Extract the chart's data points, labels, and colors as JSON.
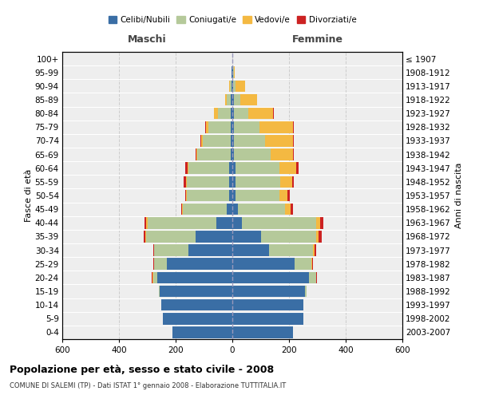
{
  "age_groups": [
    "0-4",
    "5-9",
    "10-14",
    "15-19",
    "20-24",
    "25-29",
    "30-34",
    "35-39",
    "40-44",
    "45-49",
    "50-54",
    "55-59",
    "60-64",
    "65-69",
    "70-74",
    "75-79",
    "80-84",
    "85-89",
    "90-94",
    "95-99",
    "100+"
  ],
  "birth_years": [
    "2003-2007",
    "1998-2002",
    "1993-1997",
    "1988-1992",
    "1983-1987",
    "1978-1982",
    "1973-1977",
    "1968-1972",
    "1963-1967",
    "1958-1962",
    "1953-1957",
    "1948-1952",
    "1943-1947",
    "1938-1942",
    "1933-1937",
    "1928-1932",
    "1923-1927",
    "1918-1922",
    "1913-1917",
    "1908-1912",
    "≤ 1907"
  ],
  "males": {
    "celibi": [
      210,
      245,
      250,
      255,
      265,
      230,
      155,
      130,
      55,
      20,
      10,
      10,
      10,
      5,
      5,
      5,
      5,
      5,
      3,
      2,
      0
    ],
    "coniugati": [
      0,
      0,
      2,
      5,
      15,
      45,
      120,
      175,
      245,
      155,
      150,
      150,
      145,
      120,
      100,
      80,
      45,
      15,
      5,
      2,
      0
    ],
    "vedovi": [
      0,
      0,
      0,
      0,
      2,
      2,
      2,
      3,
      5,
      2,
      2,
      3,
      3,
      3,
      5,
      8,
      15,
      5,
      3,
      0,
      0
    ],
    "divorziati": [
      0,
      0,
      0,
      0,
      2,
      2,
      3,
      5,
      5,
      3,
      5,
      8,
      8,
      2,
      2,
      2,
      0,
      0,
      0,
      0,
      0
    ]
  },
  "females": {
    "nubili": [
      215,
      250,
      250,
      255,
      270,
      220,
      130,
      100,
      35,
      20,
      10,
      10,
      10,
      5,
      5,
      5,
      5,
      5,
      3,
      2,
      0
    ],
    "coniugate": [
      0,
      0,
      2,
      8,
      25,
      60,
      155,
      195,
      260,
      165,
      155,
      160,
      155,
      130,
      110,
      90,
      50,
      22,
      8,
      3,
      0
    ],
    "vedove": [
      0,
      0,
      0,
      0,
      2,
      3,
      5,
      10,
      15,
      20,
      30,
      40,
      60,
      80,
      100,
      120,
      90,
      60,
      35,
      3,
      0
    ],
    "divorziate": [
      0,
      0,
      0,
      0,
      2,
      2,
      5,
      10,
      10,
      8,
      8,
      8,
      8,
      2,
      2,
      2,
      2,
      0,
      0,
      0,
      0
    ]
  },
  "colors": {
    "celibi": "#3a6ea5",
    "coniugati": "#b5c99a",
    "vedovi": "#f4b942",
    "divorziati": "#cc2222"
  },
  "xlim": 600,
  "title": "Popolazione per età, sesso e stato civile - 2008",
  "subtitle": "COMUNE DI SALEMI (TP) - Dati ISTAT 1° gennaio 2008 - Elaborazione TUTTITALIA.IT",
  "xlabel_left": "Maschi",
  "xlabel_right": "Femmine",
  "ylabel_left": "Fasce di età",
  "ylabel_right": "Anni di nascita",
  "bg_color": "#ffffff",
  "plot_bg": "#eeeeee",
  "grid_color": "#cccccc",
  "bar_height": 0.85
}
